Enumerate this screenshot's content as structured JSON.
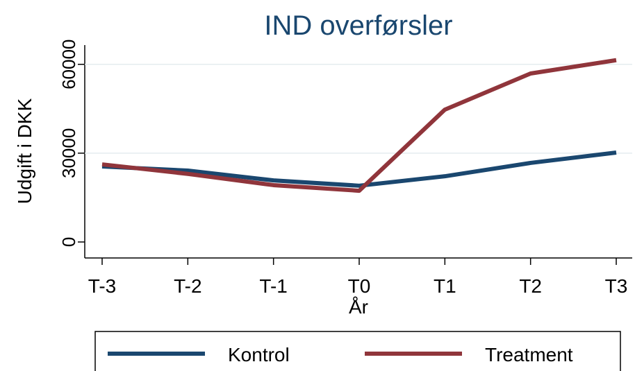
{
  "chart_data": {
    "type": "line",
    "title": "IND overførsler",
    "xlabel": "År",
    "ylabel": "Udgift i DKK",
    "categories": [
      "T-3",
      "T-2",
      "T-1",
      "T0",
      "T1",
      "T2",
      "T3"
    ],
    "series": [
      {
        "name": "Kontrol",
        "color": "#1a476f",
        "values": [
          25500,
          24100,
          20800,
          19000,
          22200,
          26700,
          30200
        ]
      },
      {
        "name": "Treatment",
        "color": "#90353b",
        "values": [
          26200,
          23000,
          19200,
          17300,
          44700,
          56900,
          61400
        ]
      }
    ],
    "ylim": [
      -5400,
      66500
    ],
    "yticks": [
      0,
      30000,
      60000
    ],
    "grid": true,
    "legend": "bottom"
  }
}
